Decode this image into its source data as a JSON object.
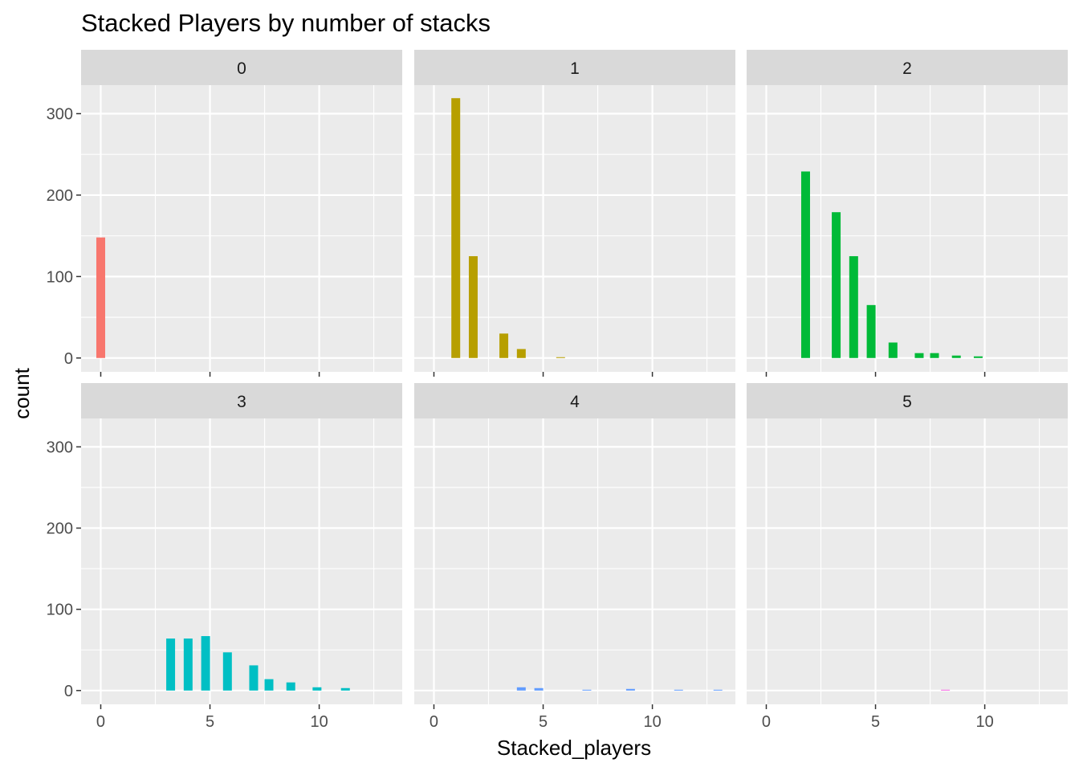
{
  "chart_data": {
    "type": "bar",
    "title": "Stacked Players by number of stacks",
    "xlabel": "Stacked_players",
    "ylabel": "count",
    "xlim": [
      -0.9,
      13.8
    ],
    "ylim": [
      -17,
      335
    ],
    "x_ticks": [
      0,
      5,
      10
    ],
    "x_tick_labels": [
      "0",
      "5",
      "10"
    ],
    "y_ticks": [
      0,
      100,
      200,
      300
    ],
    "y_tick_labels": [
      "0",
      "100",
      "200",
      "300"
    ],
    "grid": true,
    "legend": "none",
    "facets": [
      {
        "label": "0",
        "color": "#F8766D",
        "bars": [
          {
            "x": 0,
            "y": 148
          }
        ]
      },
      {
        "label": "1",
        "color": "#B79F00",
        "bars": [
          {
            "x": 1,
            "y": 319
          },
          {
            "x": 1.8,
            "y": 125
          },
          {
            "x": 3.2,
            "y": 30
          },
          {
            "x": 4,
            "y": 11
          },
          {
            "x": 5.8,
            "y": 1
          }
        ]
      },
      {
        "label": "2",
        "color": "#00BA38",
        "bars": [
          {
            "x": 1.8,
            "y": 229
          },
          {
            "x": 3.2,
            "y": 179
          },
          {
            "x": 4,
            "y": 125
          },
          {
            "x": 4.8,
            "y": 65
          },
          {
            "x": 5.8,
            "y": 19
          },
          {
            "x": 7,
            "y": 6
          },
          {
            "x": 7.7,
            "y": 6
          },
          {
            "x": 8.7,
            "y": 3
          },
          {
            "x": 9.7,
            "y": 2
          }
        ]
      },
      {
        "label": "3",
        "color": "#00BFC4",
        "bars": [
          {
            "x": 3.2,
            "y": 64
          },
          {
            "x": 4,
            "y": 64
          },
          {
            "x": 4.8,
            "y": 67
          },
          {
            "x": 5.8,
            "y": 47
          },
          {
            "x": 7,
            "y": 31
          },
          {
            "x": 7.7,
            "y": 14
          },
          {
            "x": 8.7,
            "y": 10
          },
          {
            "x": 9.9,
            "y": 4
          },
          {
            "x": 11.2,
            "y": 3
          }
        ]
      },
      {
        "label": "4",
        "color": "#619CFF",
        "bars": [
          {
            "x": 4,
            "y": 4
          },
          {
            "x": 4.8,
            "y": 3
          },
          {
            "x": 7,
            "y": 1
          },
          {
            "x": 9,
            "y": 2
          },
          {
            "x": 11.2,
            "y": 1
          },
          {
            "x": 13,
            "y": 1
          }
        ]
      },
      {
        "label": "5",
        "color": "#F564E3",
        "bars": [
          {
            "x": 8.2,
            "y": 1
          }
        ]
      }
    ]
  }
}
